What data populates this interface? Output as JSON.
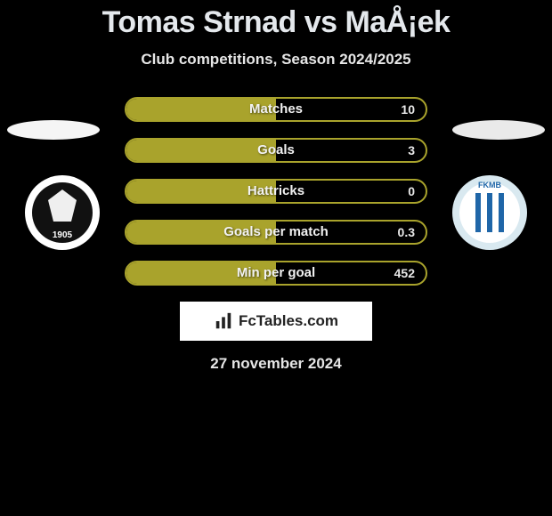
{
  "title": "Tomas Strnad vs MaÅ¡ek",
  "subtitle": "Club competitions, Season 2024/2025",
  "date_text": "27 november 2024",
  "logo_text": "FcTables.com",
  "colors": {
    "background": "#000000",
    "bar_border": "#a9a32c",
    "bar_fill": "#a9a32c",
    "title_color": "#e4e8ec",
    "text_color": "#e6e6e6",
    "logo_bg": "#ffffff",
    "logo_text": "#222222",
    "ellipse_left": "#f5f5f5",
    "ellipse_right": "#eaeaea"
  },
  "team_left": {
    "name": "FC Hradec Kralove",
    "badge_bg": "#ffffff",
    "badge_inner": "#111111",
    "badge_accent": "#efefef"
  },
  "team_right": {
    "name": "FK Mlada Boleslav",
    "badge_bg": "#d9e9f0",
    "badge_inner": "#1f66a8",
    "badge_accent": "#ffffff"
  },
  "stats": [
    {
      "label": "Matches",
      "value_text": "10",
      "left_fill_pct": 50,
      "right_fill_pct": 0
    },
    {
      "label": "Goals",
      "value_text": "3",
      "left_fill_pct": 50,
      "right_fill_pct": 0
    },
    {
      "label": "Hattricks",
      "value_text": "0",
      "left_fill_pct": 50,
      "right_fill_pct": 0
    },
    {
      "label": "Goals per match",
      "value_text": "0.3",
      "left_fill_pct": 50,
      "right_fill_pct": 0
    },
    {
      "label": "Min per goal",
      "value_text": "452",
      "left_fill_pct": 50,
      "right_fill_pct": 0
    }
  ]
}
